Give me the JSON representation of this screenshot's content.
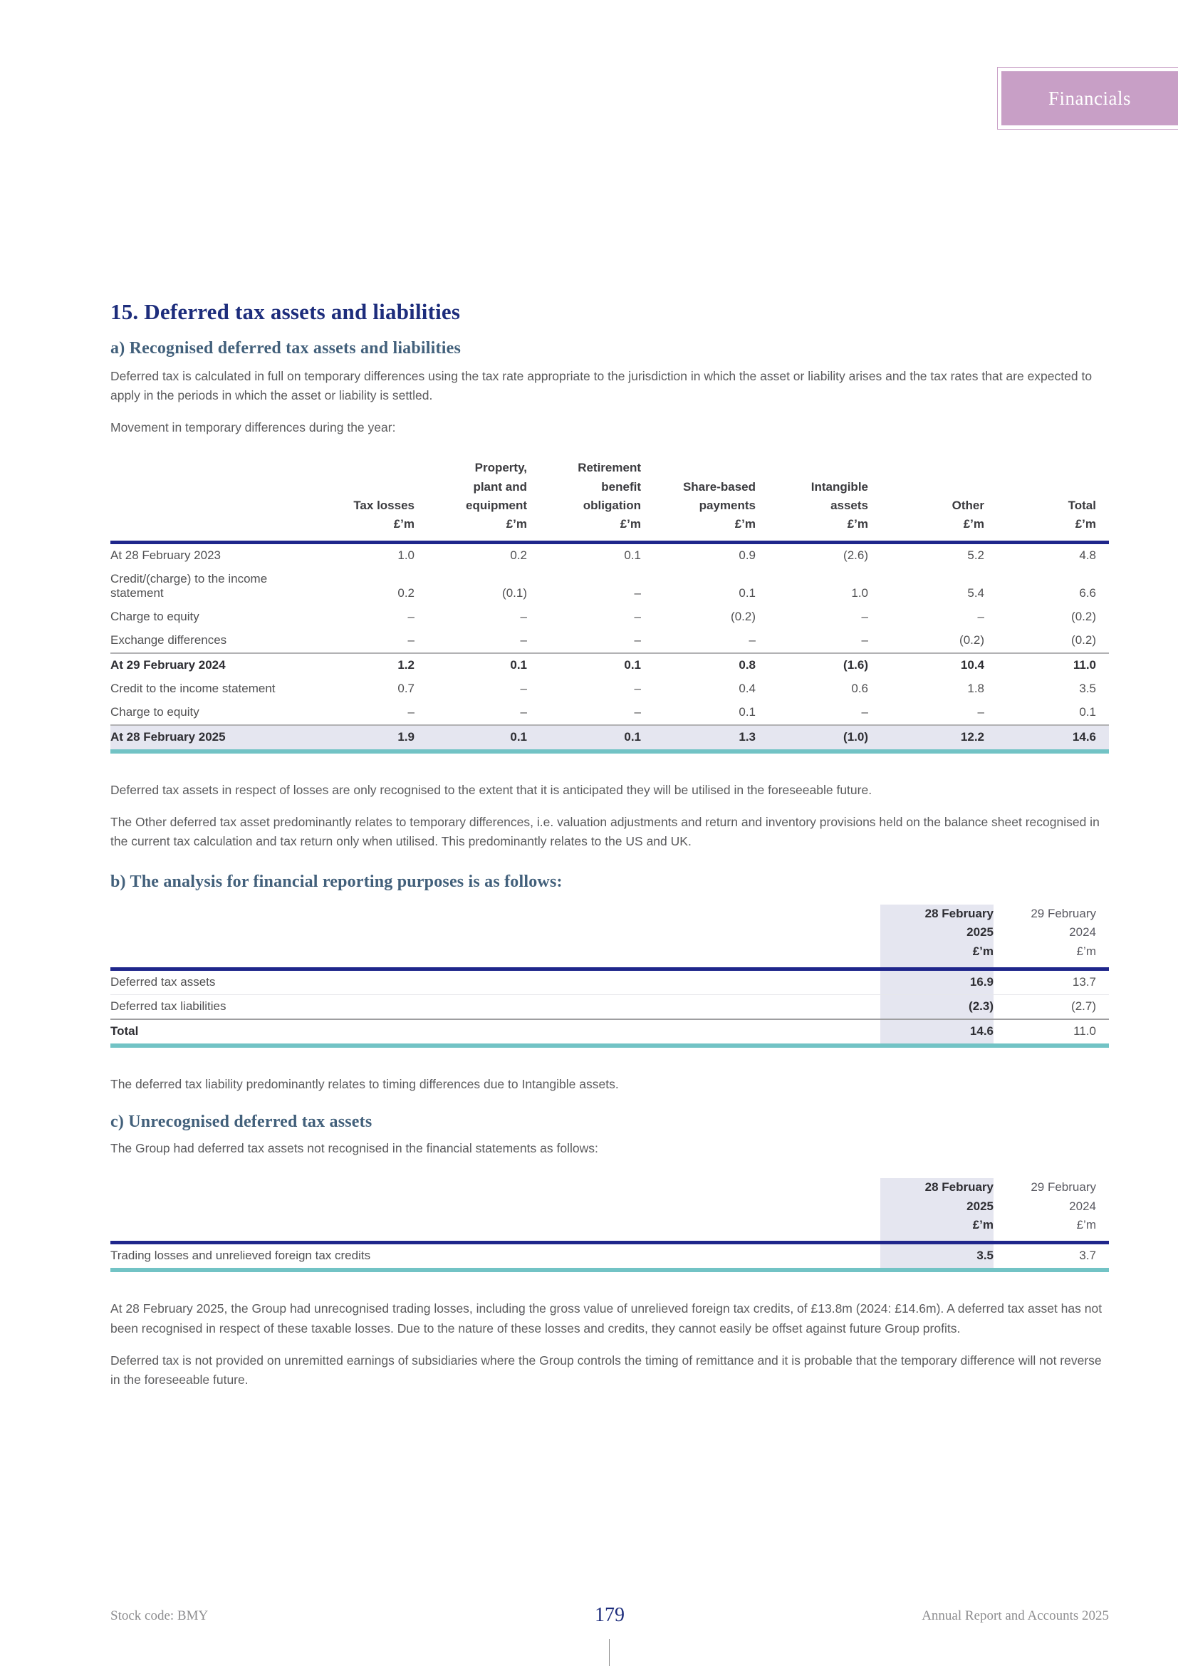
{
  "tab_label": "Financials",
  "section_title": "15. Deferred tax assets and liabilities",
  "a": {
    "heading": "a) Recognised deferred tax assets and liabilities",
    "para1": "Deferred tax is calculated in full on temporary differences using the tax rate appropriate to the jurisdiction in which the asset or liability arises and the tax rates that are expected to apply in the periods in which the asset or liability is settled.",
    "para2": "Movement in temporary differences during the year:",
    "para3": "Deferred tax assets in respect of losses are only recognised to the extent that it is anticipated they will be utilised in the foreseeable future.",
    "para4": "The Other deferred tax asset predominantly relates to temporary differences, i.e. valuation adjustments and return and inventory provisions held on the balance sheet recognised in the current tax calculation and tax return only when utilised. This predominantly relates to the US and UK."
  },
  "b": {
    "heading": "b) The analysis for financial reporting purposes is as follows:",
    "para1": "The deferred tax liability predominantly relates to timing differences due to Intangible assets."
  },
  "c": {
    "heading": "c) Unrecognised deferred tax assets",
    "para1": "The Group had deferred tax assets not recognised in the financial statements as follows:",
    "para2": "At 28 February 2025, the Group had unrecognised trading losses, including the gross value of unrelieved foreign tax credits, of £13.8m (2024: £14.6m). A deferred tax asset has not been recognised in respect of these taxable losses. Due to the nature of these losses and credits, they cannot easily be offset against future Group profits.",
    "para3": "Deferred tax is not provided on unremitted earnings of subsidiaries where the Group controls the timing of remittance and it is probable that the temporary difference will not reverse in the foreseeable future."
  },
  "tables": {
    "movement": {
      "columns": [
        {
          "label": "Tax losses",
          "unit": "£’m"
        },
        {
          "label": "Property,\nplant and\nequipment",
          "unit": "£’m"
        },
        {
          "label": "Retirement\nbenefit\nobligation",
          "unit": "£’m"
        },
        {
          "label": "Share-based\npayments",
          "unit": "£’m"
        },
        {
          "label": "Intangible\nassets",
          "unit": "£’m"
        },
        {
          "label": "Other",
          "unit": "£’m"
        },
        {
          "label": "Total",
          "unit": "£’m"
        }
      ],
      "rows": [
        {
          "label": "At 28 February 2023",
          "style": "",
          "values": [
            "1.0",
            "0.2",
            "0.1",
            "0.9",
            "(2.6)",
            "5.2",
            "4.8"
          ]
        },
        {
          "label": "Credit/(charge) to the income statement",
          "style": "",
          "values": [
            "0.2",
            "(0.1)",
            "–",
            "0.1",
            "1.0",
            "5.4",
            "6.6"
          ]
        },
        {
          "label": "Charge to equity",
          "style": "",
          "values": [
            "–",
            "–",
            "–",
            "(0.2)",
            "–",
            "–",
            "(0.2)"
          ]
        },
        {
          "label": "Exchange differences",
          "style": "",
          "values": [
            "–",
            "–",
            "–",
            "–",
            "–",
            "(0.2)",
            "(0.2)"
          ]
        },
        {
          "label": "At 29 February 2024",
          "style": "subtotal",
          "values": [
            "1.2",
            "0.1",
            "0.1",
            "0.8",
            "(1.6)",
            "10.4",
            "11.0"
          ]
        },
        {
          "label": "Credit to the income statement",
          "style": "",
          "values": [
            "0.7",
            "–",
            "–",
            "0.4",
            "0.6",
            "1.8",
            "3.5"
          ]
        },
        {
          "label": "Charge to equity",
          "style": "",
          "values": [
            "–",
            "–",
            "–",
            "0.1",
            "–",
            "–",
            "0.1"
          ]
        },
        {
          "label": "At 28 February 2025",
          "style": "total",
          "values": [
            "1.9",
            "0.1",
            "0.1",
            "1.3",
            "(1.0)",
            "12.2",
            "14.6"
          ]
        }
      ]
    },
    "analysis": {
      "columns": [
        {
          "label": "28 February\n2025",
          "unit": "£’m",
          "highlight": true
        },
        {
          "label": "29 February\n2024",
          "unit": "£’m"
        }
      ],
      "rows": [
        {
          "label": "Deferred tax assets",
          "style": "light-sep",
          "values": [
            "16.9",
            "13.7"
          ]
        },
        {
          "label": "Deferred tax liabilities",
          "style": "",
          "values": [
            "(2.3)",
            "(2.7)"
          ]
        },
        {
          "label": "Total",
          "style": "total",
          "values": [
            "14.6",
            "11.0"
          ]
        }
      ]
    },
    "unrecognised": {
      "columns": [
        {
          "label": "28 February\n2025",
          "unit": "£’m",
          "highlight": true
        },
        {
          "label": "29 February\n2024",
          "unit": "£’m"
        }
      ],
      "rows": [
        {
          "label": "Trading losses and unrelieved foreign tax credits",
          "style": "",
          "values": [
            "3.5",
            "3.7"
          ]
        }
      ]
    }
  },
  "footer": {
    "stock_code": "Stock code: BMY",
    "page_number": "179",
    "report_name": "Annual Report and Accounts 2025"
  }
}
